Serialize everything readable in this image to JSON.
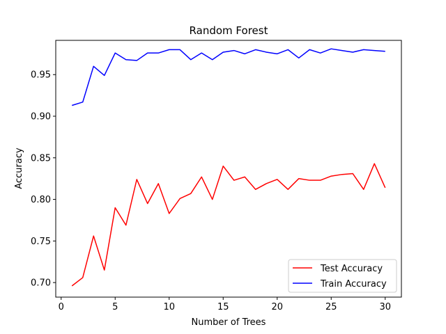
{
  "chart_data": {
    "type": "line",
    "title": "Random Forest",
    "xlabel": "Number of Trees",
    "ylabel": "Accuracy",
    "xlim": [
      -0.5,
      31.5
    ],
    "ylim": [
      0.6825,
      0.9912
    ],
    "x_ticks": [
      0,
      5,
      10,
      15,
      20,
      25,
      30
    ],
    "y_ticks": [
      0.7,
      0.75,
      0.8,
      0.85,
      0.9,
      0.95
    ],
    "y_tick_labels": [
      "0.70",
      "0.75",
      "0.80",
      "0.85",
      "0.90",
      "0.95"
    ],
    "grid": false,
    "legend_position": "lower-right",
    "x": [
      1,
      2,
      3,
      4,
      5,
      6,
      7,
      8,
      9,
      10,
      11,
      12,
      13,
      14,
      15,
      16,
      17,
      18,
      19,
      20,
      21,
      22,
      23,
      24,
      25,
      26,
      27,
      28,
      29,
      30
    ],
    "series": [
      {
        "name": "Test Accuracy",
        "color": "#ff0000",
        "values": [
          0.696,
          0.706,
          0.756,
          0.715,
          0.79,
          0.769,
          0.824,
          0.795,
          0.819,
          0.783,
          0.801,
          0.807,
          0.827,
          0.8,
          0.84,
          0.823,
          0.827,
          0.812,
          0.819,
          0.824,
          0.812,
          0.825,
          0.823,
          0.823,
          0.828,
          0.83,
          0.831,
          0.812,
          0.843,
          0.814
        ]
      },
      {
        "name": "Train Accuracy",
        "color": "#0000ff",
        "values": [
          0.913,
          0.917,
          0.96,
          0.949,
          0.976,
          0.968,
          0.967,
          0.976,
          0.976,
          0.98,
          0.98,
          0.968,
          0.976,
          0.968,
          0.977,
          0.979,
          0.975,
          0.98,
          0.977,
          0.975,
          0.98,
          0.97,
          0.98,
          0.976,
          0.981,
          0.979,
          0.977,
          0.98,
          0.979,
          0.978
        ]
      }
    ]
  }
}
